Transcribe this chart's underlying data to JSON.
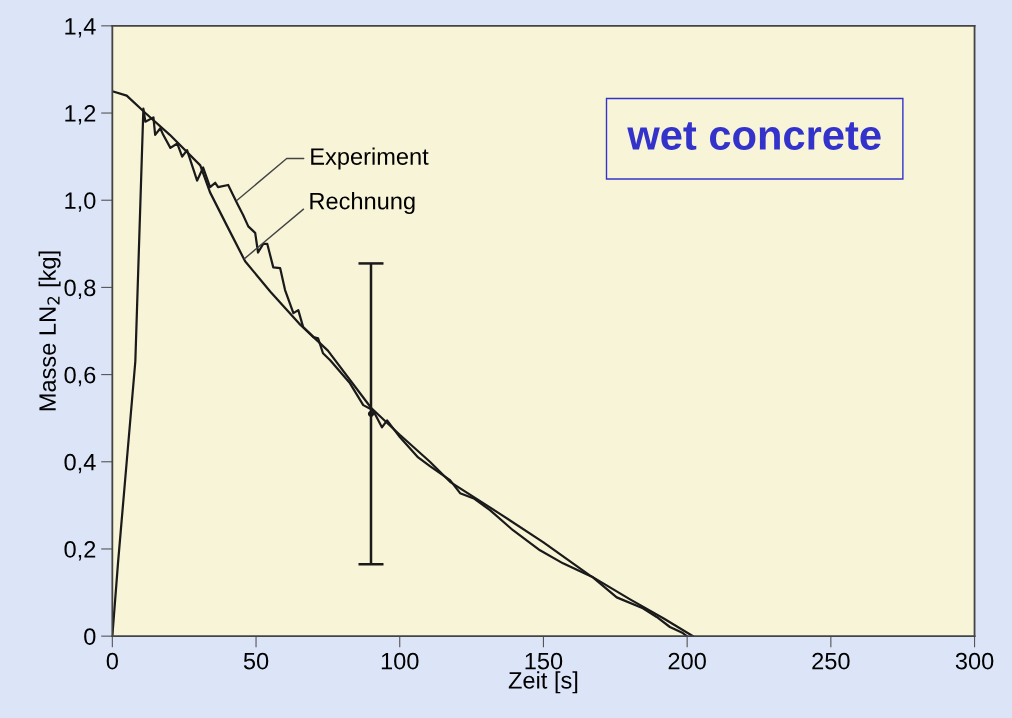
{
  "chart_data": {
    "type": "line",
    "xlabel": "Zeit [s]",
    "ylabel": "Masse LN$_{2}$ [kg]",
    "xlim": [
      0,
      300
    ],
    "ylim": [
      0,
      1.4
    ],
    "xticks": [
      0,
      50,
      100,
      150,
      200,
      250,
      300
    ],
    "yticks": [
      0,
      {
        "value": 0.2,
        "label": "0,2"
      },
      {
        "value": 0.4,
        "label": "0,4"
      },
      {
        "value": 0.6,
        "label": "0,6"
      },
      {
        "value": 0.8,
        "label": "0,8"
      },
      {
        "value": 1.0,
        "label": "1,0"
      },
      {
        "value": 1.2,
        "label": "1,2"
      },
      {
        "value": 1.4,
        "label": "1,4"
      }
    ],
    "grid": false,
    "marker": "none",
    "line_style": "solid",
    "series": [
      {
        "color": "#1a1a1a",
        "x": [
          0,
          2,
          5,
          8,
          10.8,
          11.5,
          14.3,
          14.9,
          16.7,
          17.7,
          20.2,
          22.6,
          24.3,
          26,
          29.5,
          31.6,
          34,
          35.8,
          36.8,
          40.3,
          43.4,
          45.5,
          47.3,
          49.7,
          50.7,
          52.5,
          53.9,
          56,
          58.4,
          60.1,
          63,
          64.7,
          66.4,
          70,
          71.6,
          73.3,
          75.8,
          82.7,
          87.3,
          90.7,
          93.8,
          95.6,
          100.1,
          106.4,
          110.5,
          117.5,
          121,
          126,
          131.4,
          139.4,
          148.8,
          156.8,
          167.2,
          175.5,
          184.6,
          189.4,
          194,
          198.5,
          199.9
        ],
        "values": [
          0,
          0.17,
          0.4,
          0.63,
          1.21,
          1.18,
          1.19,
          1.15,
          1.165,
          1.15,
          1.12,
          1.13,
          1.1,
          1.115,
          1.045,
          1.075,
          1.03,
          1.04,
          1.03,
          1.035,
          0.993,
          0.966,
          0.94,
          0.925,
          0.88,
          0.9,
          0.9,
          0.846,
          0.844,
          0.794,
          0.741,
          0.748,
          0.709,
          0.686,
          0.683,
          0.649,
          0.633,
          0.58,
          0.53,
          0.518,
          0.479,
          0.495,
          0.456,
          0.41,
          0.39,
          0.358,
          0.328,
          0.315,
          0.289,
          0.243,
          0.197,
          0.167,
          0.135,
          0.089,
          0.064,
          0.044,
          0.021,
          0.007,
          0
        ]
      },
      {
        "color": "#1a1a1a",
        "x": [
          0,
          5,
          11.5,
          20,
          30.6,
          34,
          40,
          46.2,
          55,
          65,
          75,
          90,
          100,
          110.5,
          117.5,
          135,
          150,
          166,
          180,
          192,
          202
        ],
        "values": [
          1.25,
          1.24,
          1.2,
          1.15,
          1.08,
          1.018,
          0.94,
          0.86,
          0.79,
          0.717,
          0.655,
          0.524,
          0.462,
          0.4,
          0.354,
          0.28,
          0.215,
          0.14,
          0.085,
          0.04,
          0
        ]
      },
      {
        "type": "scatter",
        "marker": "circle",
        "color": "#1a1a1a",
        "x": [
          90
        ],
        "values": [
          0.51
        ],
        "errors": [
          [
            0.165,
            0.855
          ]
        ]
      }
    ],
    "annotations": [
      {
        "text": "Experiment",
        "x": 43.4,
        "y": 1.0
      },
      {
        "text": "Rechnung",
        "x": 46,
        "y": 0.866
      },
      "wet concrete"
    ]
  }
}
